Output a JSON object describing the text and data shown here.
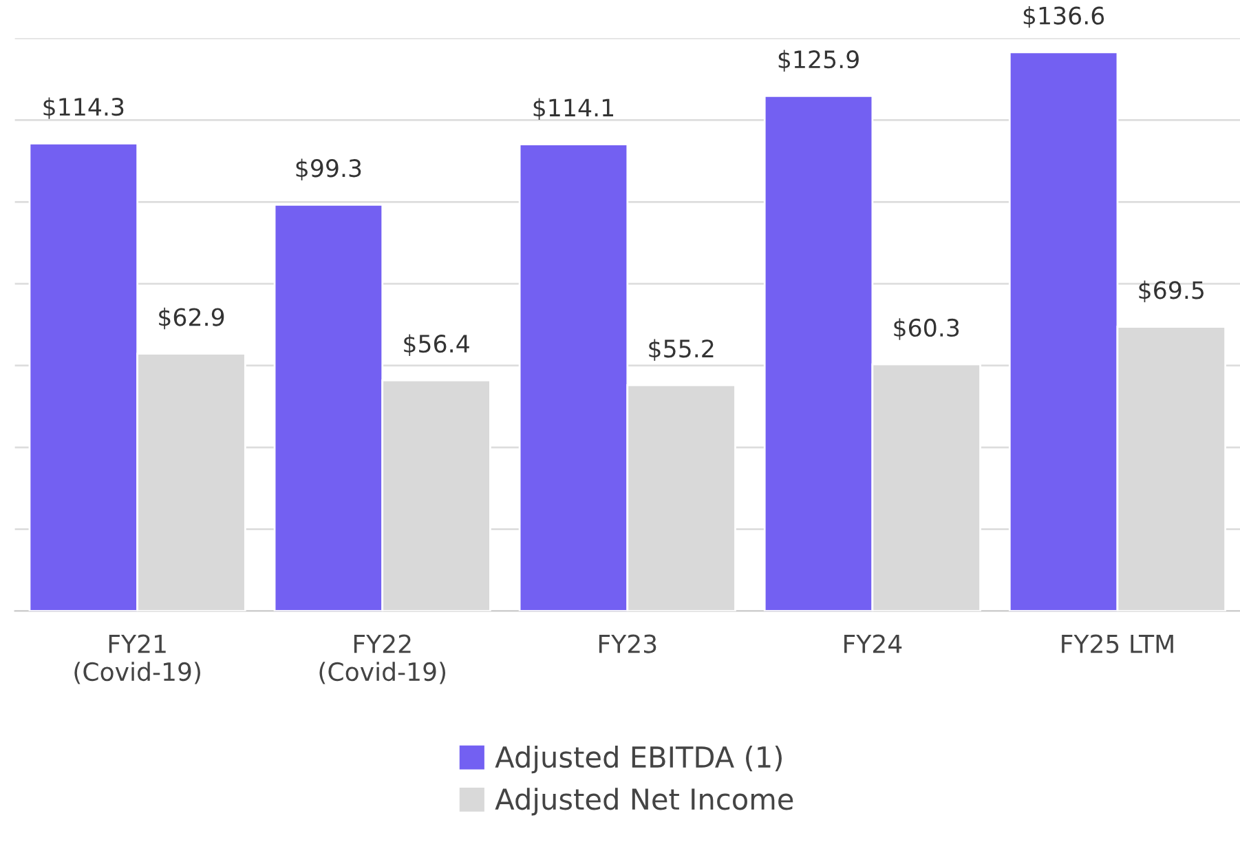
{
  "chart_data": {
    "type": "bar",
    "categories": [
      "FY21\n(Covid-19)",
      "FY22\n(Covid-19)",
      "FY23",
      "FY24",
      "FY25 LTM"
    ],
    "series": [
      {
        "name": "Adjusted EBITDA (1)",
        "color": "#7360f2",
        "values": [
          114.3,
          99.3,
          114.1,
          125.9,
          136.6
        ],
        "value_labels": [
          "$114.3",
          "$99.3",
          "$114.1",
          "$125.9",
          "$136.6"
        ]
      },
      {
        "name": "Adjusted Net Income",
        "color": "#d9d9d9",
        "values": [
          62.9,
          56.4,
          55.2,
          60.3,
          69.5
        ],
        "value_labels": [
          "$62.9",
          "$56.4",
          "$55.2",
          "$60.3",
          "$69.5"
        ]
      }
    ],
    "ylim": [
      0,
      140
    ],
    "yticks": [
      {
        "value": 0,
        "label": null
      },
      {
        "value": 20,
        "label": null
      },
      {
        "value": 40,
        "label": null
      },
      {
        "value": 60,
        "label": null
      },
      {
        "value": 80,
        "label": null
      },
      {
        "value": 100,
        "label": null
      },
      {
        "value": 120,
        "label": null
      },
      {
        "value": 140,
        "label": null
      }
    ],
    "grid": "y",
    "legend": "bottom"
  }
}
